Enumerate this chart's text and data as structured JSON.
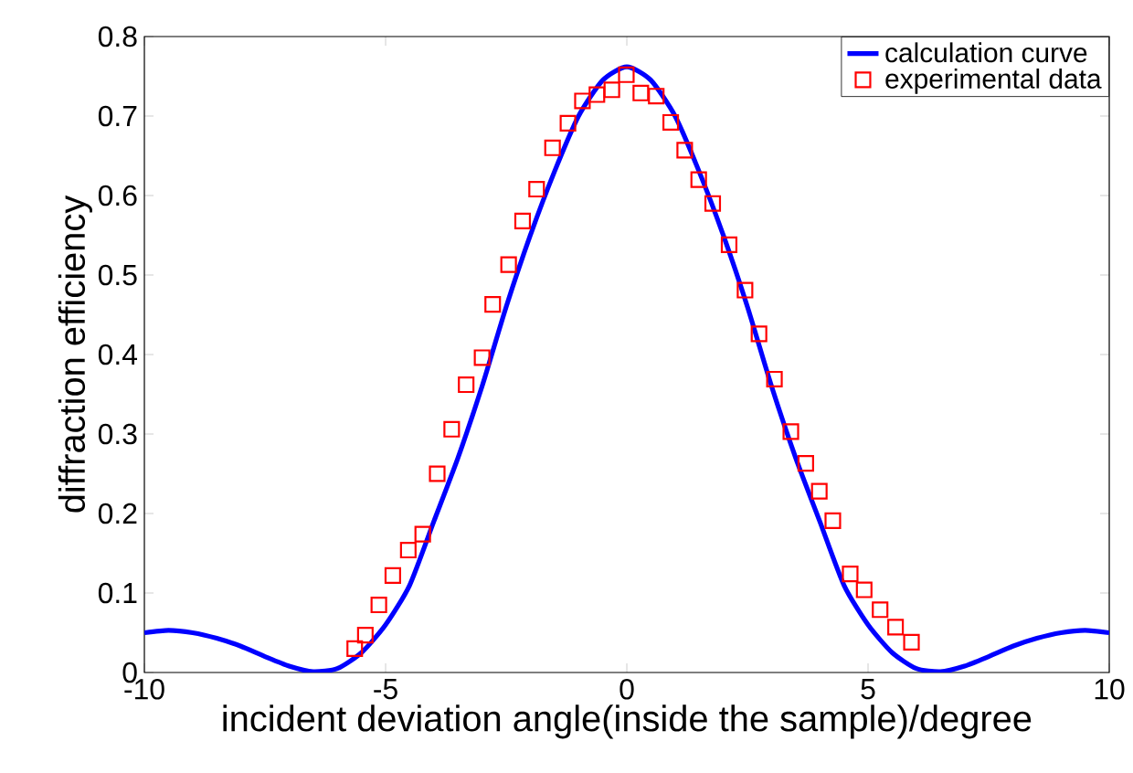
{
  "chart_data": {
    "type": "line",
    "xlabel": "incident deviation angle(inside the sample)/degree",
    "ylabel": "diffraction efficiency",
    "xlim": [
      -10,
      10
    ],
    "ylim": [
      0,
      0.8
    ],
    "xticks": [
      -10,
      -5,
      0,
      5,
      10
    ],
    "yticks": [
      0,
      0.1,
      0.2,
      0.3,
      0.4,
      0.5,
      0.6,
      0.7,
      0.8
    ],
    "grid": false,
    "legend": "top right",
    "series": [
      {
        "name": "calculation curve",
        "color": "#0000ff",
        "marker": "none",
        "line_style": "solid",
        "x": [
          -10,
          -9.5,
          -9,
          -8.5,
          -8,
          -7.5,
          -7,
          -6.5,
          -6,
          -5.5,
          -5,
          -4.5,
          -4,
          -3.5,
          -3,
          -2.5,
          -2,
          -1.5,
          -1,
          -0.5,
          0,
          0.5,
          1,
          1.5,
          2,
          2.5,
          3,
          3.5,
          4,
          4.5,
          5,
          5.5,
          6,
          6.5,
          7,
          7.5,
          8,
          8.5,
          9,
          9.5,
          10
        ],
        "values": [
          0.05,
          0.053,
          0.05,
          0.043,
          0.033,
          0.02,
          0.008,
          0.001,
          0.005,
          0.025,
          0.06,
          0.11,
          0.19,
          0.27,
          0.36,
          0.46,
          0.55,
          0.63,
          0.7,
          0.745,
          0.762,
          0.745,
          0.7,
          0.63,
          0.55,
          0.46,
          0.36,
          0.27,
          0.19,
          0.11,
          0.06,
          0.025,
          0.005,
          0.001,
          0.008,
          0.02,
          0.033,
          0.043,
          0.05,
          0.053,
          0.05
        ]
      },
      {
        "name": "experimental data",
        "type": "scatter",
        "color": "#ff0000",
        "marker": "square",
        "x": [
          -5.64,
          -5.42,
          -5.14,
          -4.85,
          -4.53,
          -4.23,
          -3.93,
          -3.63,
          -3.33,
          -3.0,
          -2.78,
          -2.45,
          -2.16,
          -1.87,
          -1.54,
          -1.22,
          -0.92,
          -0.62,
          -0.31,
          -0.01,
          0.29,
          0.61,
          0.91,
          1.2,
          1.49,
          1.78,
          2.12,
          2.45,
          2.74,
          3.06,
          3.4,
          3.71,
          3.99,
          4.27,
          4.63,
          4.92,
          5.25,
          5.57,
          5.9
        ],
        "values": [
          0.03,
          0.047,
          0.085,
          0.122,
          0.154,
          0.174,
          0.25,
          0.306,
          0.362,
          0.396,
          0.463,
          0.513,
          0.568,
          0.608,
          0.66,
          0.691,
          0.719,
          0.727,
          0.733,
          0.752,
          0.729,
          0.725,
          0.692,
          0.657,
          0.62,
          0.59,
          0.538,
          0.481,
          0.426,
          0.369,
          0.303,
          0.263,
          0.228,
          0.191,
          0.124,
          0.104,
          0.079,
          0.057,
          0.038
        ]
      }
    ]
  }
}
